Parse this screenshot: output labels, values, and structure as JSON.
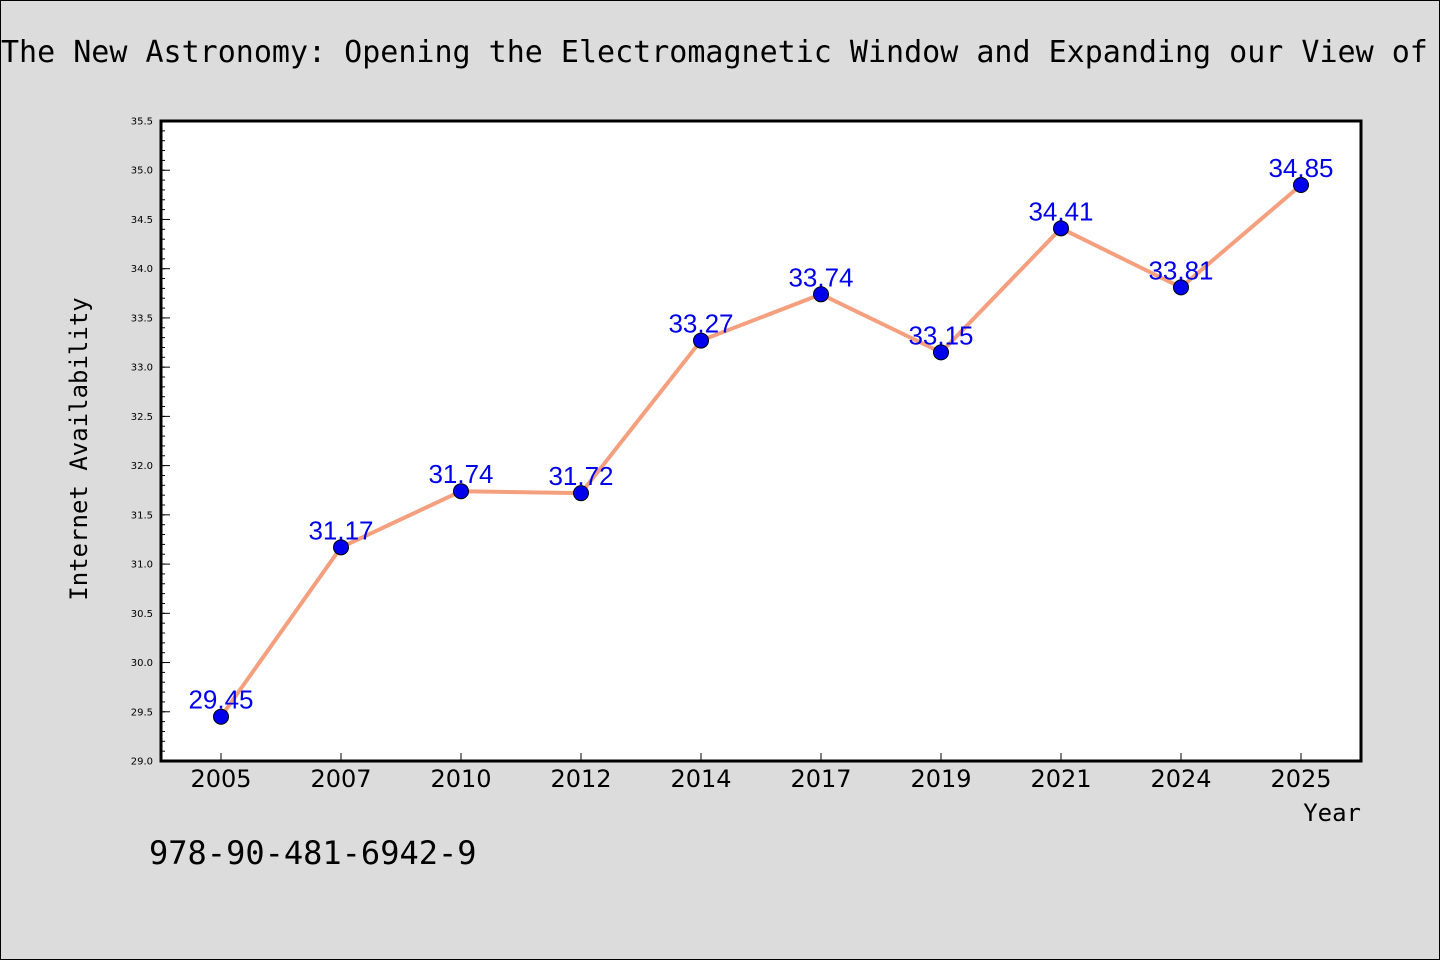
{
  "chart_data": {
    "type": "line",
    "title": "The New Astronomy: Opening the Electromagnetic Window and Expanding our View of",
    "xlabel": "Year",
    "ylabel": "Internet Availability",
    "categories": [
      "2005",
      "2007",
      "2010",
      "2012",
      "2014",
      "2017",
      "2019",
      "2021",
      "2024",
      "2025"
    ],
    "series": [
      {
        "values": [
          29.45,
          31.17,
          31.74,
          31.72,
          33.27,
          33.74,
          33.15,
          34.41,
          33.81,
          34.85
        ]
      }
    ],
    "data_labels": [
      "29.45",
      "31.17",
      "31.74",
      "31.72",
      "33.27",
      "33.74",
      "33.15",
      "34.41",
      "33.81",
      "34.85"
    ],
    "ylim": [
      29.0,
      35.5
    ],
    "y_ticks": [
      "29.0",
      "29.5",
      "30.0",
      "30.5",
      "31.0",
      "31.5",
      "32.0",
      "32.5",
      "33.0",
      "33.5",
      "34.0",
      "34.5",
      "35.0",
      "35.5"
    ],
    "grid": false,
    "legend": "none",
    "colors": {
      "line": "#f4a07f",
      "marker": "#0000ee",
      "label": "#0000ee",
      "background": "#dcdcdc",
      "plot_background": "#ffffff"
    }
  },
  "caption": "978-90-481-6942-9"
}
